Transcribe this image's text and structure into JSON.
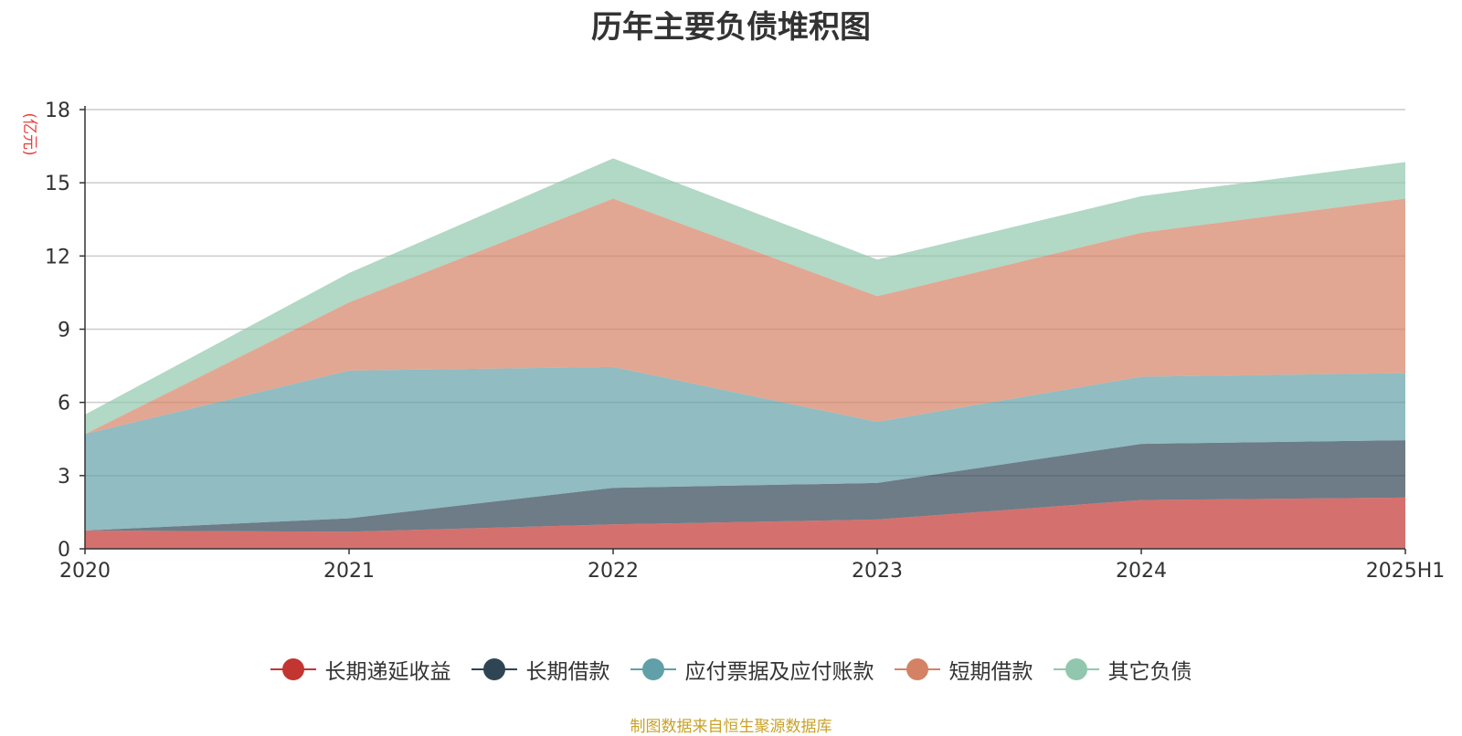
{
  "chart_data": {
    "type": "area",
    "stacked": true,
    "title": "历年主要负债堆积图",
    "ylabel": "(亿元)",
    "x": [
      "2020",
      "2021",
      "2022",
      "2023",
      "2024",
      "2025H1"
    ],
    "yticks": [
      "0",
      "3",
      "6",
      "9",
      "12",
      "15",
      "18"
    ],
    "ylim": [
      0,
      18
    ],
    "grid": true,
    "legend_position": "bottom",
    "series": [
      {
        "name": "长期递延收益",
        "color": "#c23531",
        "values": [
          0.75,
          0.7,
          1.0,
          1.2,
          2.0,
          2.1
        ]
      },
      {
        "name": "长期借款",
        "color": "#2f4554",
        "values": [
          0.0,
          0.55,
          1.5,
          1.5,
          2.3,
          2.35
        ]
      },
      {
        "name": "应付票据及应付账款",
        "color": "#61a0a8",
        "values": [
          3.95,
          6.05,
          4.95,
          2.5,
          2.75,
          2.75
        ]
      },
      {
        "name": "短期借款",
        "color": "#d48265",
        "values": [
          0.0,
          2.8,
          6.9,
          5.15,
          5.9,
          7.15
        ]
      },
      {
        "name": "其它负债",
        "color": "#91c7ae",
        "values": [
          0.8,
          1.2,
          1.65,
          1.5,
          1.5,
          1.5
        ]
      }
    ]
  },
  "source_note": "制图数据来自恒生聚源数据库"
}
